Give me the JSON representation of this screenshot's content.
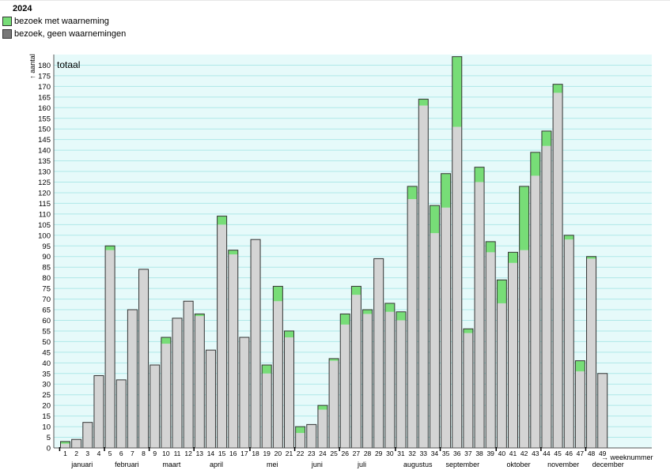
{
  "legend": {
    "title": "2024",
    "items": [
      {
        "label": "bezoek met waarneming",
        "color": "#77dd77"
      },
      {
        "label": "bezoek, geen waarnemingen",
        "color": "#777777"
      }
    ]
  },
  "chart_data": {
    "type": "bar",
    "stacked": true,
    "panel_label": "totaal",
    "ylabel": "↑ aantal",
    "xlabel": "→ weeknummer",
    "ylim": [
      0,
      185
    ],
    "ytick_step": 5,
    "grid": true,
    "background_color": "#e6fafa",
    "grid_color": "#aee8e8",
    "weeks": [
      1,
      2,
      3,
      4,
      5,
      6,
      7,
      8,
      9,
      10,
      11,
      12,
      13,
      14,
      15,
      16,
      17,
      18,
      19,
      20,
      21,
      22,
      23,
      24,
      25,
      26,
      27,
      28,
      29,
      30,
      31,
      32,
      33,
      34,
      35,
      36,
      37,
      38,
      39,
      40,
      41,
      42,
      43,
      44,
      45,
      46,
      47,
      48,
      49
    ],
    "series": [
      {
        "name": "bezoek, geen waarnemingen",
        "color": "#d4d4d4",
        "values": [
          2,
          4,
          12,
          34,
          93,
          32,
          65,
          84,
          39,
          49,
          61,
          69,
          62,
          46,
          105,
          91,
          52,
          98,
          35,
          69,
          52,
          7,
          11,
          18,
          41,
          58,
          72,
          63,
          89,
          64,
          60,
          117,
          161,
          101,
          113,
          151,
          54,
          125,
          92,
          68,
          87,
          93,
          128,
          142,
          167,
          98,
          36,
          89,
          35
        ]
      },
      {
        "name": "bezoek met waarneming",
        "color": "#77dd77",
        "values": [
          1,
          0,
          0,
          0,
          2,
          0,
          0,
          0,
          0,
          3,
          0,
          0,
          1,
          0,
          4,
          2,
          0,
          0,
          4,
          7,
          3,
          3,
          0,
          2,
          1,
          5,
          4,
          2,
          0,
          4,
          4,
          6,
          3,
          13,
          16,
          33,
          2,
          7,
          5,
          11,
          5,
          30,
          11,
          7,
          4,
          2,
          5,
          1,
          0
        ]
      }
    ],
    "months": [
      {
        "label": "januari",
        "start_week": 1
      },
      {
        "label": "februari",
        "start_week": 5
      },
      {
        "label": "maart",
        "start_week": 9
      },
      {
        "label": "april",
        "start_week": 13
      },
      {
        "label": "mei",
        "start_week": 18
      },
      {
        "label": "juni",
        "start_week": 22
      },
      {
        "label": "juli",
        "start_week": 26
      },
      {
        "label": "augustus",
        "start_week": 31
      },
      {
        "label": "september",
        "start_week": 35
      },
      {
        "label": "oktober",
        "start_week": 40
      },
      {
        "label": "november",
        "start_week": 44
      },
      {
        "label": "december",
        "start_week": 48
      }
    ]
  }
}
